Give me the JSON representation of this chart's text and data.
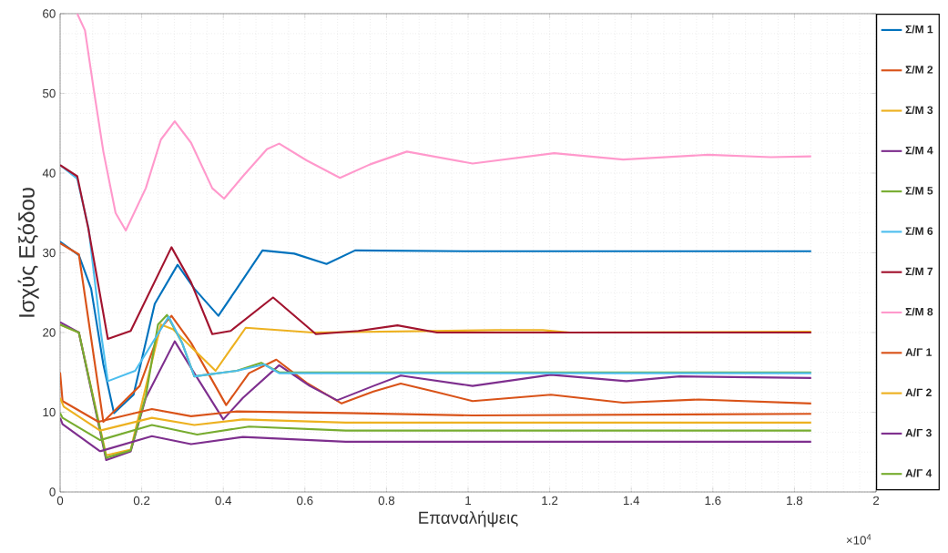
{
  "chart_data": {
    "type": "line",
    "xlabel": "Επαναλήψεις",
    "ylabel": "Ισχύς Εξόδου",
    "annotations": [
      "×10$^{4}$"
    ],
    "xlim": [
      0,
      2
    ],
    "ylim": [
      0,
      60
    ],
    "xticks": [
      0,
      0.2,
      0.4,
      0.6,
      0.8,
      1,
      1.2,
      1.4,
      1.6,
      1.8,
      2
    ],
    "yticks": [
      0,
      10,
      20,
      30,
      40,
      50,
      60
    ],
    "grid": true,
    "legend": "right",
    "series": [
      {
        "name": "Σ/Μ 1",
        "color": "#0072bd",
        "x": [
          0,
          0.046,
          0.076,
          0.106,
          0.132,
          0.18,
          0.232,
          0.288,
          0.329,
          0.388,
          0.433,
          0.496,
          0.574,
          0.653,
          0.723,
          1.0,
          1.841
        ],
        "values": [
          31.4,
          29.7,
          25.5,
          16.0,
          9.9,
          12.2,
          23.6,
          28.5,
          25.5,
          22.1,
          25.5,
          30.3,
          29.9,
          28.6,
          30.3,
          30.2,
          30.2
        ]
      },
      {
        "name": "Σ/Μ 2",
        "color": "#d95319",
        "x": [
          0,
          0.046,
          0.106,
          0.195,
          0.247,
          0.273,
          0.321,
          0.407,
          0.463,
          0.53,
          0.604,
          0.69,
          0.768,
          0.835,
          0.917,
          1.011,
          1.203,
          1.38,
          1.565,
          1.841
        ],
        "values": [
          31.2,
          29.8,
          8.8,
          13.3,
          20.6,
          22.1,
          18.7,
          10.9,
          14.9,
          16.6,
          13.7,
          11.1,
          12.6,
          13.6,
          12.6,
          11.4,
          12.2,
          11.2,
          11.6,
          11.1
        ]
      },
      {
        "name": "Σ/Μ 3",
        "color": "#edb120",
        "x": [
          0,
          0.046,
          0.113,
          0.173,
          0.247,
          0.277,
          0.381,
          0.455,
          0.619,
          1.069,
          1.183,
          1.25,
          1.841
        ],
        "values": [
          21.0,
          20.0,
          4.6,
          5.3,
          21.0,
          20.4,
          15.2,
          20.6,
          20.0,
          20.3,
          20.3,
          20.0,
          20.1
        ]
      },
      {
        "name": "Σ/Μ 4",
        "color": "#7e2f8e",
        "x": [
          0,
          0.046,
          0.113,
          0.173,
          0.21,
          0.281,
          0.329,
          0.4,
          0.448,
          0.537,
          0.612,
          0.679,
          0.768,
          0.835,
          1.011,
          1.203,
          1.388,
          1.518,
          1.841
        ],
        "values": [
          21.3,
          20.0,
          4.0,
          5.1,
          11.8,
          18.9,
          14.9,
          9.1,
          11.8,
          15.9,
          13.3,
          11.5,
          13.3,
          14.6,
          13.3,
          14.7,
          13.9,
          14.5,
          14.3
        ]
      },
      {
        "name": "Σ/Μ 5",
        "color": "#77ac30",
        "x": [
          0,
          0.046,
          0.113,
          0.173,
          0.21,
          0.24,
          0.262,
          0.299,
          0.329,
          0.433,
          0.493,
          0.537,
          1.841
        ],
        "values": [
          21.0,
          20.0,
          4.3,
          5.2,
          12.0,
          21.0,
          22.2,
          18.7,
          14.5,
          15.2,
          16.2,
          15.0,
          15.0
        ]
      },
      {
        "name": "Σ/Μ 6",
        "color": "#4dbeee",
        "x": [
          0,
          0.042,
          0.07,
          0.1,
          0.117,
          0.184,
          0.266,
          0.299,
          0.329,
          0.433,
          0.5,
          0.537,
          1.841
        ],
        "values": [
          41.0,
          39.3,
          33.0,
          20.0,
          13.9,
          15.2,
          22.0,
          18.7,
          14.5,
          15.2,
          16.0,
          14.9,
          14.9
        ]
      },
      {
        "name": "Σ/Μ 7",
        "color": "#a2142f",
        "x": [
          0,
          0.042,
          0.069,
          0.117,
          0.173,
          0.273,
          0.321,
          0.373,
          0.418,
          0.522,
          0.627,
          0.731,
          0.827,
          0.924,
          1.841
        ],
        "values": [
          41.0,
          39.6,
          33.1,
          19.2,
          20.2,
          30.7,
          26.3,
          19.8,
          20.2,
          24.4,
          19.8,
          20.2,
          20.9,
          20.0,
          20.0
        ]
      },
      {
        "name": "Σ/Μ 8",
        "color": "#ff99cc",
        "x": [
          0.042,
          0.061,
          0.083,
          0.106,
          0.136,
          0.161,
          0.21,
          0.247,
          0.281,
          0.321,
          0.373,
          0.402,
          0.448,
          0.507,
          0.537,
          0.604,
          0.686,
          0.76,
          0.85,
          1.011,
          1.211,
          1.38,
          1.588,
          1.742,
          1.841
        ],
        "values": [
          60,
          57.9,
          50.3,
          42.7,
          35.0,
          32.8,
          38.1,
          44.2,
          46.5,
          43.8,
          38.1,
          36.8,
          39.6,
          43.0,
          43.7,
          41.6,
          39.4,
          41.1,
          42.7,
          41.2,
          42.5,
          41.7,
          42.3,
          42.0,
          42.1
        ]
      },
      {
        "name": "Α/Γ 1",
        "color": "#d95319",
        "x": [
          0,
          0.006,
          0.094,
          0.225,
          0.321,
          0.433,
          0.7,
          1.01,
          1.841
        ],
        "values": [
          15.0,
          11.4,
          8.8,
          10.4,
          9.5,
          10.1,
          9.9,
          9.6,
          9.8
        ]
      },
      {
        "name": "Α/Γ 2",
        "color": "#edb120",
        "x": [
          0,
          0.009,
          0.098,
          0.225,
          0.329,
          0.448,
          0.7,
          1.841
        ],
        "values": [
          11.8,
          10.7,
          7.7,
          9.3,
          8.4,
          9.1,
          8.7,
          8.7
        ]
      },
      {
        "name": "Α/Γ 3",
        "color": "#7e2f8e",
        "x": [
          0,
          0.006,
          0.098,
          0.225,
          0.321,
          0.448,
          0.7,
          1.841
        ],
        "values": [
          9.3,
          8.5,
          5.1,
          7.0,
          6.0,
          6.9,
          6.3,
          6.3
        ]
      },
      {
        "name": "Α/Γ 4",
        "color": "#77ac30",
        "x": [
          0,
          0.006,
          0.098,
          0.225,
          0.336,
          0.463,
          0.7,
          1.841
        ],
        "values": [
          9.9,
          9.3,
          6.5,
          8.4,
          7.2,
          8.2,
          7.7,
          7.7
        ]
      }
    ]
  }
}
